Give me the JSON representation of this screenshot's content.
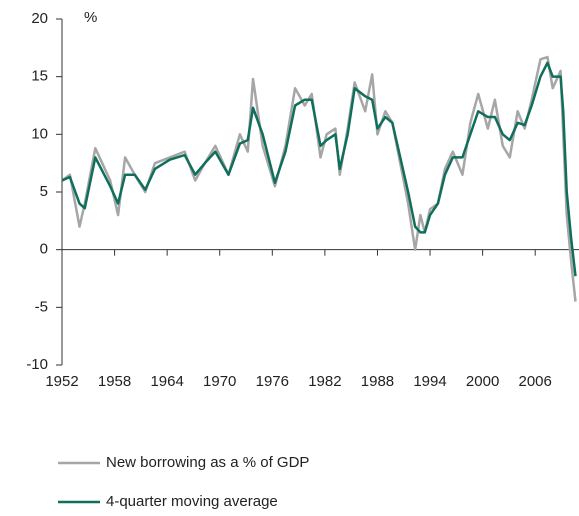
{
  "chart_data": {
    "type": "line",
    "y_unit": "%",
    "x": [
      1952,
      1952.9,
      1954,
      1954.6,
      1955.8,
      1957.5,
      1958.4,
      1959.2,
      1960.3,
      1961.5,
      1962.6,
      1964.3,
      1966,
      1967.2,
      1968.3,
      1969.5,
      1971,
      1972.3,
      1973.2,
      1973.8,
      1974.9,
      1976.3,
      1977.5,
      1978.6,
      1979.7,
      1980.5,
      1981.5,
      1982.2,
      1983.2,
      1983.7,
      1984.6,
      1985.4,
      1986.6,
      1987.4,
      1988,
      1988.9,
      1989.7,
      1990.6,
      1991.5,
      1992.3,
      1992.9,
      1993.4,
      1994,
      1994.9,
      1995.7,
      1996.6,
      1997.7,
      1998.6,
      1999.5,
      2000.6,
      2001.4,
      2002.3,
      2003.1,
      2004,
      2004.8,
      2005.6,
      2006.6,
      2007.4,
      2008,
      2008.9,
      2009.2,
      2009.6,
      2010.1,
      2010.6
    ],
    "series": [
      {
        "name": "New borrowing as a % of GDP",
        "color": "#a6a6a6",
        "width": 2.5,
        "values": [
          6,
          6.5,
          2,
          4,
          8.8,
          6,
          3,
          8,
          6.5,
          5,
          7.5,
          8,
          8.5,
          6,
          7.5,
          9,
          6.5,
          10,
          8.5,
          14.8,
          9,
          5.5,
          9,
          14,
          12.5,
          13.5,
          8,
          10,
          10.5,
          6.5,
          10.5,
          14.5,
          12,
          15.2,
          10,
          12,
          11,
          7.5,
          4,
          0,
          3,
          1.5,
          3.5,
          4,
          7,
          8.5,
          6.5,
          11,
          13.5,
          10.5,
          13,
          9,
          8,
          12,
          10.5,
          13,
          16.5,
          16.7,
          14,
          15.5,
          10,
          3,
          -1,
          -4.5
        ]
      },
      {
        "name": "4-quarter moving average",
        "color": "#0f6f5c",
        "width": 2.5,
        "values": [
          6,
          6.3,
          4,
          3.6,
          8,
          5.5,
          4,
          6.5,
          6.5,
          5.2,
          7,
          7.8,
          8.2,
          6.5,
          7.5,
          8.5,
          6.5,
          9.2,
          9.5,
          12.3,
          10,
          5.8,
          8.5,
          12.5,
          13,
          13,
          9,
          9.5,
          10,
          7,
          10,
          14,
          13.3,
          13,
          10.5,
          11.5,
          11,
          8,
          5,
          2,
          1.5,
          1.5,
          3,
          4,
          6.5,
          8,
          8,
          10,
          12,
          11.5,
          11.5,
          10,
          9.5,
          11,
          10.8,
          12.5,
          15,
          16.2,
          15,
          15,
          12,
          5,
          1,
          -2.3
        ]
      }
    ],
    "xlim": [
      1952,
      2011
    ],
    "xticks": [
      1952,
      1958,
      1964,
      1970,
      1976,
      1982,
      1988,
      1994,
      2000,
      2006
    ],
    "ylim": [
      -10,
      20
    ],
    "yticks": [
      -10,
      -5,
      0,
      5,
      10,
      15,
      20
    ]
  }
}
